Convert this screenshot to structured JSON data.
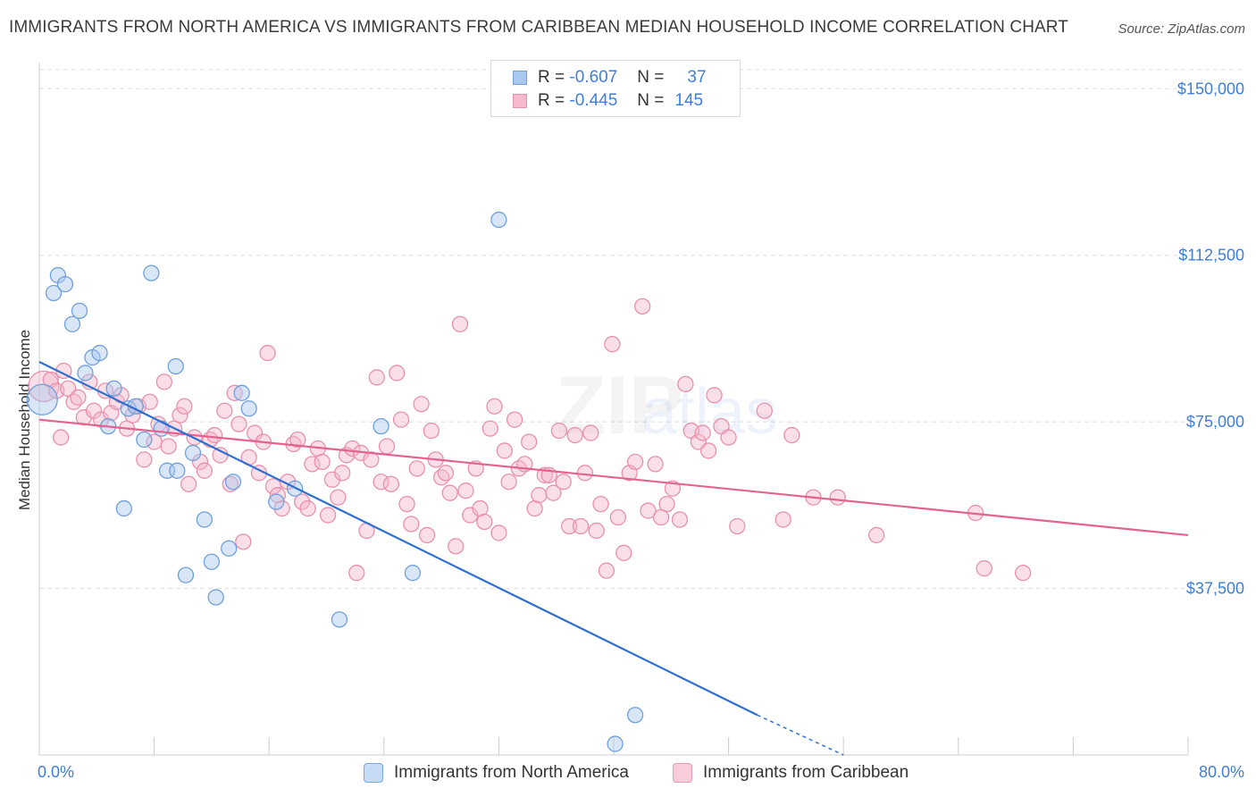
{
  "header": {
    "title": "IMMIGRANTS FROM NORTH AMERICA VS IMMIGRANTS FROM CARIBBEAN MEDIAN HOUSEHOLD INCOME CORRELATION CHART",
    "source": "Source: ZipAtlas.com"
  },
  "legend_top": {
    "rows": [
      {
        "r_label": "R =",
        "r_value": "-0.607",
        "n_label": "N =",
        "n_value": "37"
      },
      {
        "r_label": "R =",
        "r_value": "-0.445",
        "n_label": "N =",
        "n_value": "145"
      }
    ]
  },
  "legend_bottom": {
    "series1": "Immigrants from North America",
    "series2": "Immigrants from Caribbean"
  },
  "watermark": {
    "zip": "ZIP",
    "atlas": "atlas"
  },
  "colors": {
    "blue_fill": "#a8c8f0",
    "blue_stroke": "#6fa0dc",
    "blue_line": "#2f6fd1",
    "pink_fill": "#f5b8cc",
    "pink_stroke": "#e890ae",
    "pink_line": "#e26390",
    "tick_text": "#3f7fd6",
    "grid": "#dddddd"
  },
  "chart_data": {
    "type": "scatter",
    "title": "IMMIGRANTS FROM NORTH AMERICA VS IMMIGRANTS FROM CARIBBEAN MEDIAN HOUSEHOLD INCOME CORRELATION CHART",
    "xlabel": "",
    "ylabel": "Median Household Income",
    "xlim": [
      0,
      80
    ],
    "ylim": [
      0,
      157500
    ],
    "x_tick_labels": [
      "0.0%",
      "80.0%"
    ],
    "y_ticks": [
      37500,
      75000,
      112500,
      150000
    ],
    "y_tick_labels": [
      "$37,500",
      "$75,000",
      "$112,500",
      "$150,000"
    ],
    "grid": true,
    "legend_position": "top-center",
    "series": [
      {
        "name": "Immigrants from North America",
        "color": "#a8c8f0",
        "trend": {
          "x": [
            0,
            50
          ],
          "y": [
            88500,
            9000
          ],
          "dashed_to": [
            56,
            0
          ]
        },
        "points": [
          [
            0.2,
            80000
          ],
          [
            1.0,
            104000
          ],
          [
            1.3,
            108000
          ],
          [
            1.8,
            106000
          ],
          [
            2.3,
            97000
          ],
          [
            2.8,
            100000
          ],
          [
            3.2,
            86000
          ],
          [
            3.7,
            89500
          ],
          [
            4.2,
            90500
          ],
          [
            4.8,
            74000
          ],
          [
            5.2,
            82500
          ],
          [
            5.9,
            55500
          ],
          [
            6.2,
            78000
          ],
          [
            6.7,
            78500
          ],
          [
            7.3,
            71000
          ],
          [
            7.8,
            108500
          ],
          [
            8.5,
            73500
          ],
          [
            8.9,
            64000
          ],
          [
            9.6,
            64000
          ],
          [
            9.5,
            87500
          ],
          [
            10.2,
            40500
          ],
          [
            10.7,
            68000
          ],
          [
            11.5,
            53000
          ],
          [
            12.0,
            43500
          ],
          [
            12.3,
            35500
          ],
          [
            13.2,
            46500
          ],
          [
            13.5,
            61500
          ],
          [
            14.1,
            81500
          ],
          [
            14.6,
            78000
          ],
          [
            16.5,
            57000
          ],
          [
            17.8,
            60000
          ],
          [
            20.9,
            30500
          ],
          [
            23.8,
            74000
          ],
          [
            26.0,
            41000
          ],
          [
            32.0,
            120500
          ],
          [
            41.5,
            9000
          ],
          [
            40.1,
            2500
          ]
        ]
      },
      {
        "name": "Immigrants from Caribbean",
        "color": "#f5b8cc",
        "trend": {
          "x": [
            0,
            80
          ],
          "y": [
            75500,
            49500
          ]
        },
        "points": [
          [
            0.3,
            83000
          ],
          [
            0.8,
            84500
          ],
          [
            1.2,
            82000
          ],
          [
            1.5,
            71500
          ],
          [
            1.7,
            86500
          ],
          [
            2.0,
            82500
          ],
          [
            2.4,
            79500
          ],
          [
            2.7,
            80500
          ],
          [
            3.1,
            76000
          ],
          [
            3.5,
            84000
          ],
          [
            3.8,
            77500
          ],
          [
            4.3,
            75500
          ],
          [
            4.6,
            82000
          ],
          [
            5.0,
            77000
          ],
          [
            5.4,
            79500
          ],
          [
            5.7,
            81000
          ],
          [
            6.1,
            73500
          ],
          [
            6.5,
            76500
          ],
          [
            6.9,
            78500
          ],
          [
            7.3,
            66500
          ],
          [
            7.7,
            79500
          ],
          [
            8.0,
            70500
          ],
          [
            8.3,
            74500
          ],
          [
            8.7,
            84000
          ],
          [
            9.0,
            69500
          ],
          [
            9.4,
            73500
          ],
          [
            9.8,
            76500
          ],
          [
            10.1,
            78500
          ],
          [
            10.4,
            61000
          ],
          [
            10.8,
            71500
          ],
          [
            11.2,
            66000
          ],
          [
            11.5,
            64000
          ],
          [
            11.9,
            71000
          ],
          [
            12.2,
            72000
          ],
          [
            12.6,
            67500
          ],
          [
            12.9,
            77500
          ],
          [
            13.3,
            61000
          ],
          [
            13.6,
            81500
          ],
          [
            13.9,
            74500
          ],
          [
            14.2,
            48000
          ],
          [
            14.6,
            67000
          ],
          [
            15.0,
            72500
          ],
          [
            15.3,
            63500
          ],
          [
            15.6,
            70500
          ],
          [
            15.9,
            90500
          ],
          [
            16.3,
            60500
          ],
          [
            16.6,
            58500
          ],
          [
            16.9,
            55500
          ],
          [
            17.3,
            61500
          ],
          [
            17.7,
            70000
          ],
          [
            18.0,
            71000
          ],
          [
            18.3,
            57000
          ],
          [
            18.7,
            55500
          ],
          [
            19.0,
            65500
          ],
          [
            19.4,
            69000
          ],
          [
            19.7,
            66000
          ],
          [
            20.1,
            54000
          ],
          [
            20.4,
            62000
          ],
          [
            20.8,
            58000
          ],
          [
            21.1,
            63500
          ],
          [
            21.4,
            67500
          ],
          [
            21.8,
            69000
          ],
          [
            22.1,
            41000
          ],
          [
            22.4,
            68000
          ],
          [
            22.8,
            50500
          ],
          [
            23.1,
            66500
          ],
          [
            23.5,
            85000
          ],
          [
            23.8,
            61500
          ],
          [
            24.2,
            69500
          ],
          [
            24.5,
            61000
          ],
          [
            24.9,
            86000
          ],
          [
            25.2,
            75500
          ],
          [
            25.6,
            56500
          ],
          [
            25.9,
            52000
          ],
          [
            26.3,
            64500
          ],
          [
            26.6,
            79000
          ],
          [
            27.0,
            49500
          ],
          [
            27.3,
            73000
          ],
          [
            27.6,
            66500
          ],
          [
            28.0,
            62500
          ],
          [
            28.3,
            63500
          ],
          [
            28.6,
            59000
          ],
          [
            29.0,
            47000
          ],
          [
            29.3,
            97000
          ],
          [
            29.7,
            59500
          ],
          [
            30.0,
            54000
          ],
          [
            30.4,
            64500
          ],
          [
            30.7,
            55500
          ],
          [
            31.0,
            52500
          ],
          [
            31.4,
            73500
          ],
          [
            31.7,
            78500
          ],
          [
            32.0,
            50000
          ],
          [
            32.4,
            68500
          ],
          [
            32.7,
            61500
          ],
          [
            33.1,
            75500
          ],
          [
            33.4,
            64500
          ],
          [
            33.8,
            65500
          ],
          [
            34.1,
            70500
          ],
          [
            34.5,
            55500
          ],
          [
            34.8,
            58500
          ],
          [
            35.2,
            63000
          ],
          [
            35.5,
            63000
          ],
          [
            35.8,
            59000
          ],
          [
            36.2,
            73000
          ],
          [
            36.5,
            61500
          ],
          [
            36.9,
            51500
          ],
          [
            37.3,
            72000
          ],
          [
            37.7,
            51500
          ],
          [
            38.0,
            63500
          ],
          [
            38.4,
            72500
          ],
          [
            38.8,
            50500
          ],
          [
            39.1,
            56500
          ],
          [
            39.5,
            41500
          ],
          [
            39.9,
            92500
          ],
          [
            40.3,
            53500
          ],
          [
            40.7,
            45500
          ],
          [
            41.1,
            63500
          ],
          [
            41.5,
            66000
          ],
          [
            42.0,
            101000
          ],
          [
            42.4,
            55000
          ],
          [
            42.9,
            65500
          ],
          [
            43.3,
            53500
          ],
          [
            43.7,
            56500
          ],
          [
            44.1,
            60000
          ],
          [
            44.6,
            53000
          ],
          [
            45.0,
            83500
          ],
          [
            45.4,
            73000
          ],
          [
            45.9,
            70500
          ],
          [
            46.2,
            72500
          ],
          [
            46.6,
            68500
          ],
          [
            47.0,
            81000
          ],
          [
            47.5,
            74000
          ],
          [
            48.0,
            71500
          ],
          [
            48.6,
            51500
          ],
          [
            50.5,
            77500
          ],
          [
            51.8,
            53000
          ],
          [
            52.4,
            72000
          ],
          [
            53.9,
            58000
          ],
          [
            55.6,
            58000
          ],
          [
            58.3,
            49500
          ],
          [
            65.2,
            54500
          ],
          [
            65.8,
            42000
          ],
          [
            68.5,
            41000
          ]
        ]
      }
    ]
  }
}
